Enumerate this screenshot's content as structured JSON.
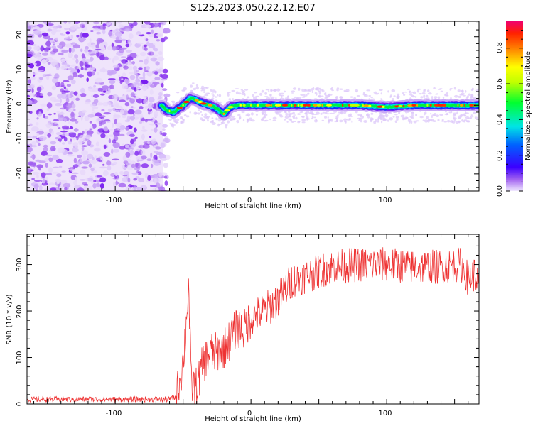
{
  "title": "S125.2023.050.22.12.E07",
  "colors": {
    "snr_line": "#ee3333",
    "axes": "#000000"
  },
  "chart_data": [
    {
      "type": "heatmap",
      "xlabel": "Height of straight line (km)",
      "ylabel": "Frequency (Hz)",
      "xlim": [
        -165,
        168
      ],
      "ylim": [
        -25,
        24.5
      ],
      "xticks": [
        "-100",
        "0",
        "100"
      ],
      "yticks": [
        "-20",
        "-10",
        "0",
        "10",
        "20"
      ],
      "colorbar": {
        "label": "Normalized spectral amplitude",
        "range": [
          0,
          0.95
        ],
        "ticks": [
          "0.0",
          "0.2",
          "0.4",
          "0.6",
          "0.8"
        ]
      },
      "noise_region_x": [
        -165,
        -65
      ],
      "ridge": {
        "description_x": [
          -66,
          -62,
          -57,
          -50,
          -45,
          -40,
          -35,
          -30,
          -25,
          -20,
          -15,
          -10,
          0,
          20,
          40,
          60,
          80,
          100,
          120,
          140,
          168
        ],
        "freq_hz": [
          0,
          -1.5,
          -2,
          0,
          2,
          1.5,
          0.5,
          0,
          -1,
          -2.5,
          -0.5,
          0,
          0,
          0,
          0,
          0,
          0,
          -0.5,
          0,
          0,
          0
        ]
      }
    },
    {
      "type": "line",
      "xlabel": "Height of straight line (km)",
      "ylabel": "SNR (10 * v/v)",
      "xlim": [
        -165,
        168
      ],
      "ylim": [
        0,
        365
      ],
      "xticks": [
        "-100",
        "0",
        "100"
      ],
      "yticks": [
        "0",
        "100",
        "200",
        "300"
      ],
      "series": [
        {
          "x": [
            -165,
            -120,
            -80,
            -60,
            -55,
            -50,
            -48,
            -46,
            -44,
            -40,
            -35,
            -30,
            -25,
            -20,
            -15,
            -10,
            -5,
            0,
            10,
            20,
            30,
            40,
            50,
            60,
            80,
            100,
            120,
            140,
            155,
            160,
            165,
            168
          ],
          "y": [
            10,
            10,
            10,
            10,
            15,
            90,
            160,
            260,
            40,
            35,
            90,
            110,
            110,
            120,
            140,
            165,
            160,
            185,
            200,
            225,
            265,
            275,
            285,
            295,
            300,
            300,
            295,
            295,
            300,
            270,
            280,
            260
          ]
        }
      ]
    }
  ]
}
